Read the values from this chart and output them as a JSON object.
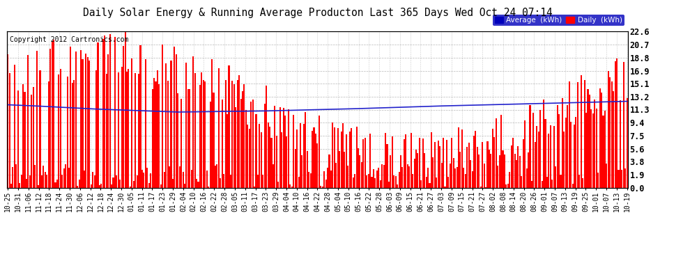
{
  "title": "Daily Solar Energy & Running Average Producton Last 365 Days Wed Oct 24 07:14",
  "copyright": "Copyright 2012 Cartronics.com",
  "legend_avg": "Average  (kWh)",
  "legend_daily": "Daily  (kWh)",
  "bar_color": "#ff0000",
  "avg_line_color": "#2222cc",
  "bg_color": "#ffffff",
  "plot_bg_color": "#ffffff",
  "grid_color": "#999999",
  "title_fontsize": 11,
  "ylabel_right_values": [
    0.0,
    1.9,
    3.8,
    5.6,
    7.5,
    9.4,
    11.3,
    13.2,
    15.1,
    16.9,
    18.8,
    20.7,
    22.6
  ],
  "ylim": [
    0.0,
    22.6
  ],
  "xtick_labels": [
    "10-25",
    "10-31",
    "11-06",
    "11-12",
    "11-18",
    "11-24",
    "11-30",
    "12-06",
    "12-12",
    "12-18",
    "12-24",
    "12-30",
    "01-05",
    "01-11",
    "01-17",
    "01-23",
    "01-29",
    "02-04",
    "02-10",
    "02-16",
    "02-22",
    "02-28",
    "03-05",
    "03-11",
    "03-17",
    "03-23",
    "03-29",
    "04-04",
    "04-10",
    "04-16",
    "04-22",
    "04-28",
    "05-04",
    "05-10",
    "05-16",
    "05-22",
    "05-28",
    "06-03",
    "06-09",
    "06-15",
    "06-21",
    "06-27",
    "07-03",
    "07-09",
    "07-15",
    "07-21",
    "07-27",
    "08-02",
    "08-08",
    "08-14",
    "08-20",
    "08-26",
    "09-01",
    "09-07",
    "09-13",
    "09-19",
    "09-25",
    "10-01",
    "10-07",
    "10-13",
    "10-19"
  ],
  "avg_line_points_x": [
    0,
    15,
    50,
    100,
    150,
    200,
    250,
    300,
    340,
    364
  ],
  "avg_line_points_y": [
    12.0,
    11.85,
    11.4,
    10.95,
    11.1,
    11.4,
    11.8,
    12.1,
    12.35,
    12.5
  ]
}
